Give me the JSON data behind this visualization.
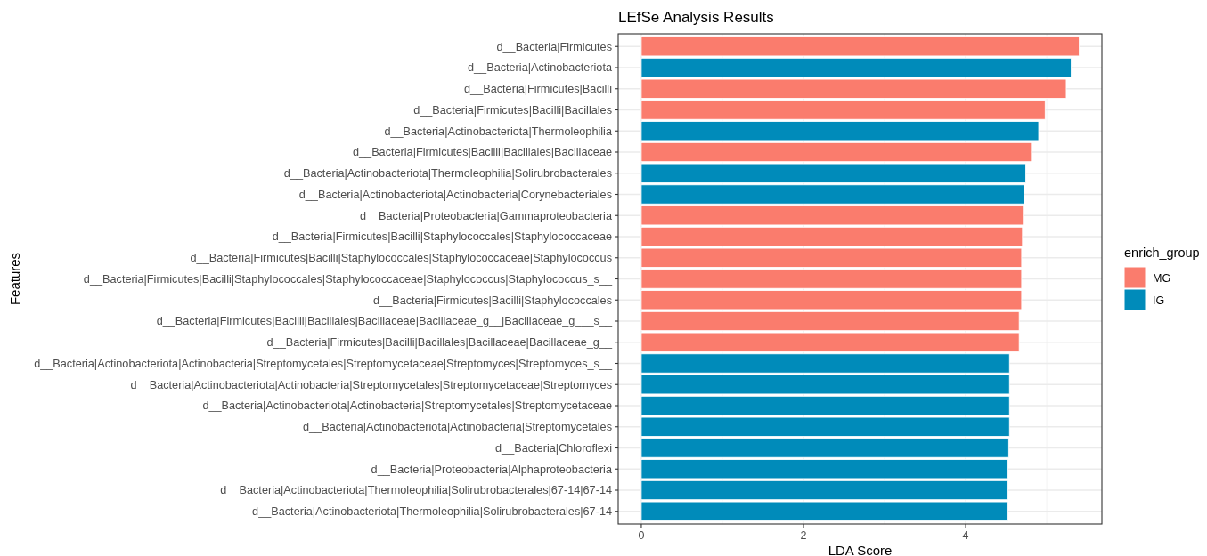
{
  "chart_data": {
    "type": "bar",
    "orientation": "horizontal",
    "title": "LEfSe Analysis Results",
    "xlabel": "LDA Score",
    "ylabel": "Features",
    "legend_title": "enrich_group",
    "legend": "right",
    "grid": true,
    "categories": [
      "d__Bacteria|Firmicutes",
      "d__Bacteria|Actinobacteriota",
      "d__Bacteria|Firmicutes|Bacilli",
      "d__Bacteria|Firmicutes|Bacilli|Bacillales",
      "d__Bacteria|Actinobacteriota|Thermoleophilia",
      "d__Bacteria|Firmicutes|Bacilli|Bacillales|Bacillaceae",
      "d__Bacteria|Actinobacteriota|Thermoleophilia|Solirubrobacterales",
      "d__Bacteria|Actinobacteriota|Actinobacteria|Corynebacteriales",
      "d__Bacteria|Proteobacteria|Gammaproteobacteria",
      "d__Bacteria|Firmicutes|Bacilli|Staphylococcales|Staphylococcaceae",
      "d__Bacteria|Firmicutes|Bacilli|Staphylococcales|Staphylococcaceae|Staphylococcus",
      "d__Bacteria|Firmicutes|Bacilli|Staphylococcales|Staphylococcaceae|Staphylococcus|Staphylococcus_s__",
      "d__Bacteria|Firmicutes|Bacilli|Staphylococcales",
      "d__Bacteria|Firmicutes|Bacilli|Bacillales|Bacillaceae|Bacillaceae_g__|Bacillaceae_g___s__",
      "d__Bacteria|Firmicutes|Bacilli|Bacillales|Bacillaceae|Bacillaceae_g__",
      "d__Bacteria|Actinobacteriota|Actinobacteria|Streptomycetales|Streptomycetaceae|Streptomyces|Streptomyces_s__",
      "d__Bacteria|Actinobacteriota|Actinobacteria|Streptomycetales|Streptomycetaceae|Streptomyces",
      "d__Bacteria|Actinobacteriota|Actinobacteria|Streptomycetales|Streptomycetaceae",
      "d__Bacteria|Actinobacteriota|Actinobacteria|Streptomycetales",
      "d__Bacteria|Chloroflexi",
      "d__Bacteria|Proteobacteria|Alphaproteobacteria",
      "d__Bacteria|Actinobacteriota|Thermoleophilia|Solirubrobacterales|67-14|67-14",
      "d__Bacteria|Actinobacteriota|Thermoleophilia|Solirubrobacterales|67-14"
    ],
    "series": [
      {
        "name": "MG",
        "color": "#fa7c6d",
        "values": [
          5.4,
          null,
          5.24,
          4.98,
          null,
          4.81,
          null,
          null,
          4.71,
          4.7,
          4.69,
          4.69,
          4.69,
          4.66,
          4.66,
          null,
          null,
          null,
          null,
          null,
          null,
          null,
          null
        ]
      },
      {
        "name": "IG",
        "color": "#008bba",
        "values": [
          null,
          5.3,
          null,
          null,
          4.9,
          null,
          4.74,
          4.72,
          null,
          null,
          null,
          null,
          null,
          null,
          null,
          4.54,
          4.54,
          4.54,
          4.54,
          4.53,
          4.52,
          4.52,
          4.52
        ]
      }
    ],
    "xlim": [
      -0.285,
      5.68
    ],
    "xticks": [
      0,
      2,
      4
    ]
  }
}
